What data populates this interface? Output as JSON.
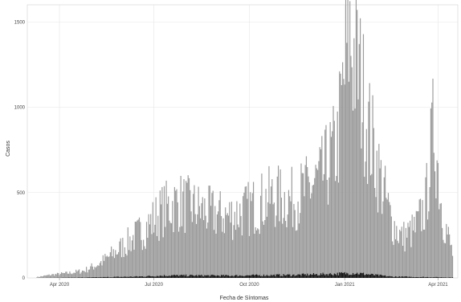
{
  "chart_data": {
    "type": "bar",
    "xlabel": "Fecha de Síntomas",
    "ylabel": "Casos",
    "x_range": [
      "2020-03-01",
      "2021-04-20"
    ],
    "ylim": [
      0,
      1600
    ],
    "y_ticks": [
      0,
      500,
      1000,
      1500
    ],
    "x_ticks": [
      {
        "date": "2020-04-01",
        "label": "Apr 2020"
      },
      {
        "date": "2020-07-01",
        "label": "Jul 2020"
      },
      {
        "date": "2020-10-01",
        "label": "Oct 2020"
      },
      {
        "date": "2021-01-01",
        "label": "Jan 2021"
      },
      {
        "date": "2021-04-01",
        "label": "Apr 2021"
      }
    ],
    "grid": true,
    "legend": "none",
    "colors": {
      "background": "#ffffff",
      "gridline": "#e6e6e6",
      "cases": "#9a9a9a",
      "secondary": "#111111",
      "axis_frame": "#d0d0d0"
    },
    "series": [
      {
        "color": "#9a9a9a",
        "points": [
          [
            "2020-03-10",
            5
          ],
          [
            "2020-03-25",
            20
          ],
          [
            "2020-04-10",
            30
          ],
          [
            "2020-04-25",
            45
          ],
          [
            "2020-05-10",
            90
          ],
          [
            "2020-05-25",
            160
          ],
          [
            "2020-06-10",
            240
          ],
          [
            "2020-06-25",
            320
          ],
          [
            "2020-07-10",
            420
          ],
          [
            "2020-07-25",
            470
          ],
          [
            "2020-08-10",
            430
          ],
          [
            "2020-08-25",
            400
          ],
          [
            "2020-09-10",
            380
          ],
          [
            "2020-09-25",
            410
          ],
          [
            "2020-10-10",
            460
          ],
          [
            "2020-10-25",
            500
          ],
          [
            "2020-11-10",
            480
          ],
          [
            "2020-11-25",
            540
          ],
          [
            "2020-12-10",
            620
          ],
          [
            "2020-12-25",
            820
          ],
          [
            "2021-01-05",
            1500
          ],
          [
            "2021-01-15",
            1250
          ],
          [
            "2021-01-25",
            900
          ],
          [
            "2021-02-05",
            600
          ],
          [
            "2021-02-15",
            350
          ],
          [
            "2021-02-25",
            250
          ],
          [
            "2021-03-10",
            300
          ],
          [
            "2021-03-20",
            450
          ],
          [
            "2021-03-28",
            950
          ],
          [
            "2021-04-05",
            400
          ],
          [
            "2021-04-15",
            150
          ]
        ]
      },
      {
        "color": "#111111",
        "points": [
          [
            "2020-03-10",
            0
          ],
          [
            "2020-05-01",
            3
          ],
          [
            "2020-06-15",
            8
          ],
          [
            "2020-07-15",
            15
          ],
          [
            "2020-09-15",
            14
          ],
          [
            "2020-11-15",
            18
          ],
          [
            "2020-12-25",
            25
          ],
          [
            "2021-01-10",
            30
          ],
          [
            "2021-02-15",
            8
          ],
          [
            "2021-04-15",
            3
          ]
        ]
      }
    ]
  }
}
